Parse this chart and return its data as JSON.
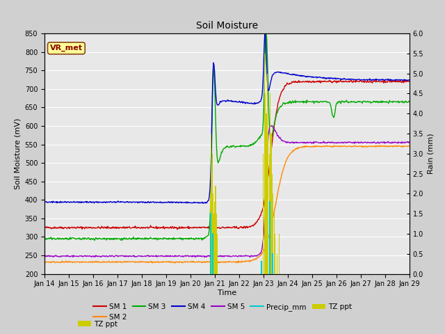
{
  "title": "Soil Moisture",
  "xlabel": "Time",
  "ylabel_left": "Soil Moisture (mV)",
  "ylabel_right": "Rain (mm)",
  "ylim_left": [
    200,
    850
  ],
  "ylim_right": [
    0.0,
    6.0
  ],
  "yticks_left": [
    200,
    250,
    300,
    350,
    400,
    450,
    500,
    550,
    600,
    650,
    700,
    750,
    800,
    850
  ],
  "yticks_right": [
    0.0,
    0.5,
    1.0,
    1.5,
    2.0,
    2.5,
    3.0,
    3.5,
    4.0,
    4.5,
    5.0,
    5.5,
    6.0
  ],
  "background_color": "#d0d0d0",
  "plot_bg_color": "#e8e8e8",
  "grid_color": "#ffffff",
  "annotation_box_color": "#ffff99",
  "annotation_text_color": "#8b0000",
  "annotation_text": "VR_met",
  "colors": {
    "SM1": "#cc0000",
    "SM2": "#ff8800",
    "SM3": "#00aa00",
    "SM4": "#0000cc",
    "SM5": "#9900cc",
    "Precip_mm": "#00cccc",
    "TZ_ppt": "#cccc00"
  }
}
